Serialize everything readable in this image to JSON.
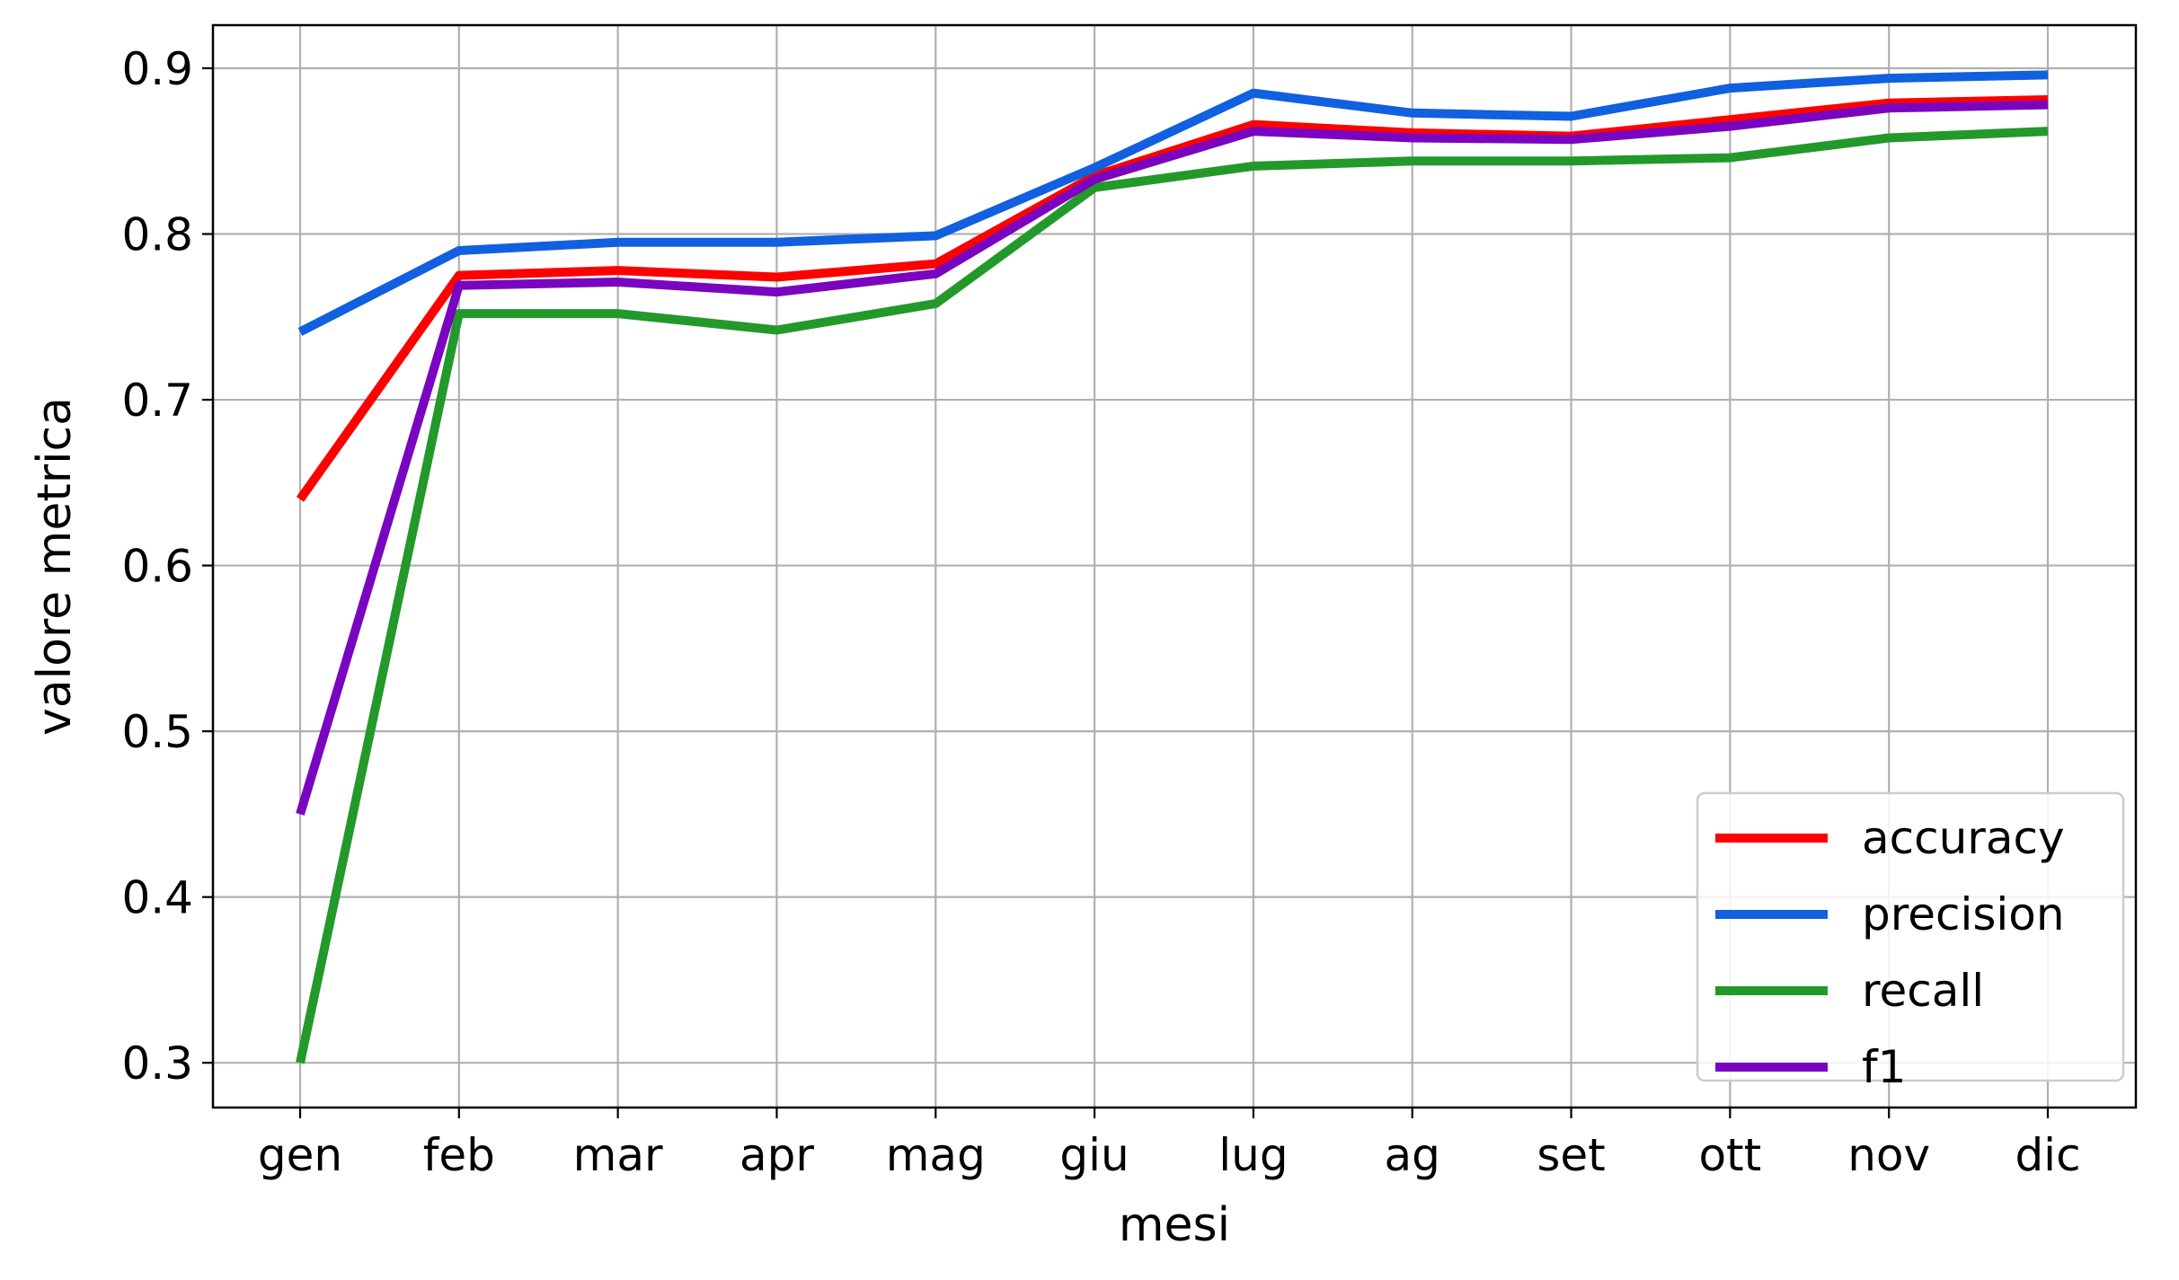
{
  "chart_data": {
    "type": "line",
    "categories": [
      "gen",
      "feb",
      "mar",
      "apr",
      "mag",
      "giu",
      "lug",
      "ag",
      "set",
      "ott",
      "nov",
      "dic"
    ],
    "series": [
      {
        "name": "accuracy",
        "color": "#ff0000",
        "values": [
          0.64,
          0.775,
          0.778,
          0.774,
          0.782,
          0.835,
          0.866,
          0.861,
          0.859,
          0.869,
          0.879,
          0.881
        ]
      },
      {
        "name": "precision",
        "color": "#1060e0",
        "values": [
          0.741,
          0.79,
          0.795,
          0.795,
          0.799,
          0.84,
          0.885,
          0.873,
          0.871,
          0.888,
          0.894,
          0.896
        ]
      },
      {
        "name": "recall",
        "color": "#22992a",
        "values": [
          0.3,
          0.752,
          0.752,
          0.742,
          0.758,
          0.828,
          0.841,
          0.844,
          0.844,
          0.846,
          0.858,
          0.862
        ]
      },
      {
        "name": "f1",
        "color": "#7a05c0",
        "values": [
          0.45,
          0.769,
          0.771,
          0.765,
          0.776,
          0.833,
          0.862,
          0.858,
          0.857,
          0.865,
          0.876,
          0.878
        ]
      }
    ],
    "yticks": [
      "0.3",
      "0.4",
      "0.5",
      "0.6",
      "0.7",
      "0.8",
      "0.9"
    ],
    "ylim": [
      0.273,
      0.926
    ],
    "xlabel": "mesi",
    "ylabel": "valore metrica",
    "grid": true,
    "legend_position": "lower-right"
  }
}
